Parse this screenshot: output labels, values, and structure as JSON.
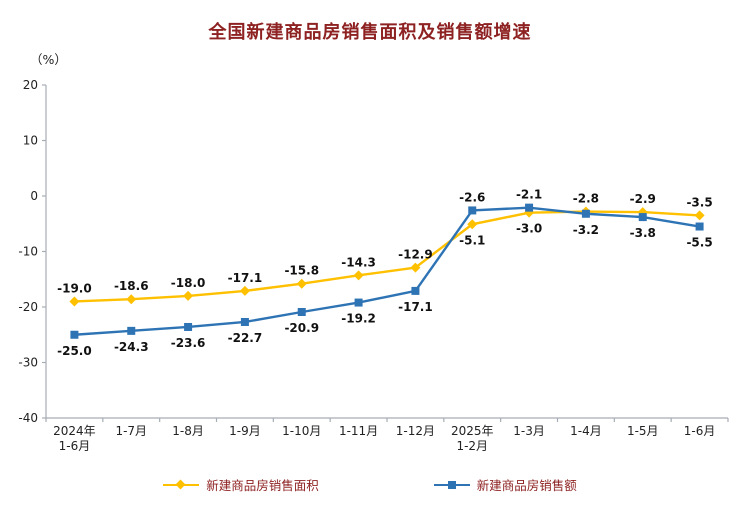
{
  "title": "全国新建商品房销售面积及销售额增速",
  "y_axis_unit": "（%）",
  "colors": {
    "title_text": "#8e2222",
    "legend_text": "#8e2222",
    "axis": "#a6adb5",
    "data_label": "#111111"
  },
  "chart_data": {
    "type": "line",
    "title": "全国新建商品房销售面积及销售额增速",
    "ylabel": "（%）",
    "ylim": [
      -40,
      20
    ],
    "y_ticks": [
      20,
      10,
      0,
      -10,
      -20,
      -30,
      -40
    ],
    "grid": false,
    "legend_position": "bottom",
    "categories": [
      "2024年\n1-6月",
      "1-7月",
      "1-8月",
      "1-9月",
      "1-10月",
      "1-11月",
      "1-12月",
      "2025年\n1-2月",
      "1-3月",
      "1-4月",
      "1-5月",
      "1-6月"
    ],
    "series": [
      {
        "name": "新建商品房销售面积",
        "marker": "diamond",
        "color": "#FFC000",
        "values": [
          -19.0,
          -18.6,
          -18.0,
          -17.1,
          -15.8,
          -14.3,
          -12.9,
          -5.1,
          -3.0,
          -2.8,
          -2.9,
          -3.5
        ]
      },
      {
        "name": "新建商品房销售额",
        "marker": "square",
        "color": "#2E74B5",
        "values": [
          -25.0,
          -24.3,
          -23.6,
          -22.7,
          -20.9,
          -19.2,
          -17.1,
          -2.6,
          -2.1,
          -3.2,
          -3.8,
          -5.5
        ]
      }
    ]
  }
}
